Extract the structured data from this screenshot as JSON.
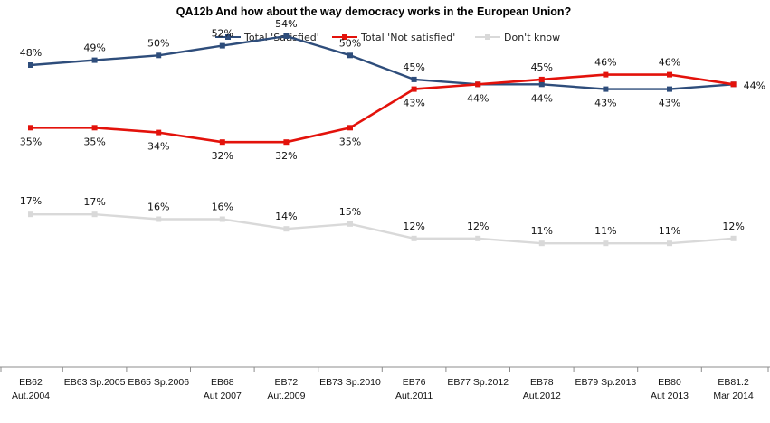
{
  "chart_data": {
    "type": "line",
    "title": "QA12b And how about the way democracy works in the European Union?",
    "categories": [
      [
        "EB62",
        "Aut.2004"
      ],
      [
        "EB63 Sp.2005"
      ],
      [
        "EB65 Sp.2006"
      ],
      [
        "EB68",
        "Aut 2007"
      ],
      [
        "EB72",
        "Aut.2009"
      ],
      [
        "EB73 Sp.2010"
      ],
      [
        "EB76",
        "Aut.2011"
      ],
      [
        "EB77 Sp.2012"
      ],
      [
        "EB78",
        "Aut.2012"
      ],
      [
        "EB79 Sp.2013"
      ],
      [
        "EB80",
        "Aut 2013"
      ],
      [
        "EB81.2",
        "Mar 2014"
      ]
    ],
    "series": [
      {
        "name": "Total 'Satisfied'",
        "color": "#2E4D7B",
        "values": [
          48,
          49,
          50,
          52,
          54,
          50,
          45,
          44,
          44,
          43,
          43,
          44
        ],
        "labels": [
          "48%",
          "49%",
          "50%",
          "52%",
          "54%",
          "50%",
          "45%",
          "44%",
          "44%",
          "43%",
          "43%",
          "44%"
        ]
      },
      {
        "name": "Total 'Not satisfied'",
        "color": "#E3120B",
        "values": [
          35,
          35,
          34,
          32,
          32,
          35,
          43,
          44,
          45,
          46,
          46,
          44
        ],
        "labels": [
          "35%",
          "35%",
          "34%",
          "32%",
          "32%",
          "35%",
          "43%",
          "",
          "45%",
          "46%",
          "46%",
          ""
        ]
      },
      {
        "name": "Don't know",
        "color": "#D9D9D9",
        "values": [
          17,
          17,
          16,
          16,
          14,
          15,
          12,
          12,
          11,
          11,
          11,
          12
        ],
        "labels": [
          "17%",
          "17%",
          "16%",
          "16%",
          "14%",
          "15%",
          "12%",
          "12%",
          "11%",
          "11%",
          "11%",
          "12%"
        ]
      }
    ],
    "ylim": [
      0,
      60
    ],
    "unit": "%",
    "grid": false,
    "legend": "top-center"
  }
}
